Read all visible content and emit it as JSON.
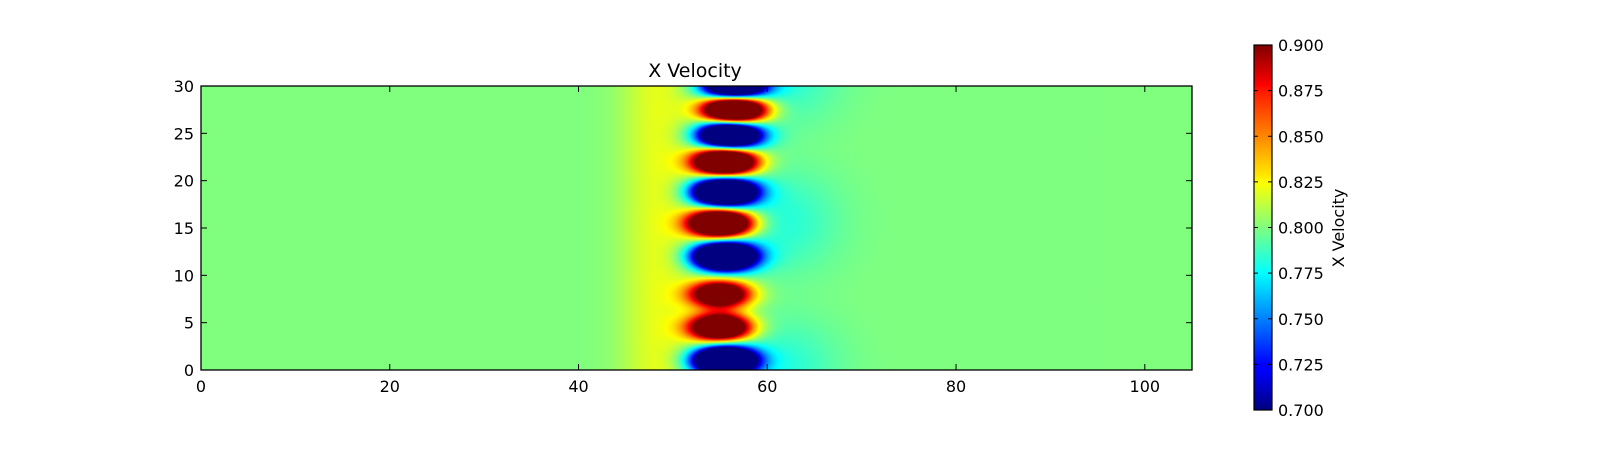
{
  "chart_data": {
    "type": "heatmap",
    "title": "X Velocity",
    "xlabel": "",
    "ylabel": "",
    "xlim": [
      0,
      105
    ],
    "ylim": [
      0,
      30
    ],
    "xticks": [
      0,
      20,
      40,
      60,
      80,
      100
    ],
    "yticks": [
      0,
      5,
      10,
      15,
      20,
      25,
      30
    ],
    "colorbar": {
      "label": "X Velocity",
      "range": [
        0.7,
        0.9
      ],
      "ticks": [
        "0.700",
        "0.725",
        "0.750",
        "0.775",
        "0.800",
        "0.825",
        "0.850",
        "0.875",
        "0.900"
      ],
      "colormap": "jet"
    },
    "background_value": 0.8,
    "vortex_band": {
      "x_center": 55.5,
      "x_extent": [
        50,
        60
      ]
    },
    "features": [
      {
        "x": 55.5,
        "y": 1.0,
        "value": 0.7
      },
      {
        "x": 55.0,
        "y": 4.5,
        "value": 0.87
      },
      {
        "x": 55.0,
        "y": 8.0,
        "value": 0.86
      },
      {
        "x": 55.5,
        "y": 12.0,
        "value": 0.7
      },
      {
        "x": 55.0,
        "y": 15.5,
        "value": 0.89
      },
      {
        "x": 55.5,
        "y": 18.8,
        "value": 0.7
      },
      {
        "x": 55.5,
        "y": 22.0,
        "value": 0.89
      },
      {
        "x": 56.0,
        "y": 24.8,
        "value": 0.71
      },
      {
        "x": 56.5,
        "y": 27.5,
        "value": 0.89
      },
      {
        "x": 56.5,
        "y": 30.0,
        "value": 0.72
      }
    ]
  }
}
